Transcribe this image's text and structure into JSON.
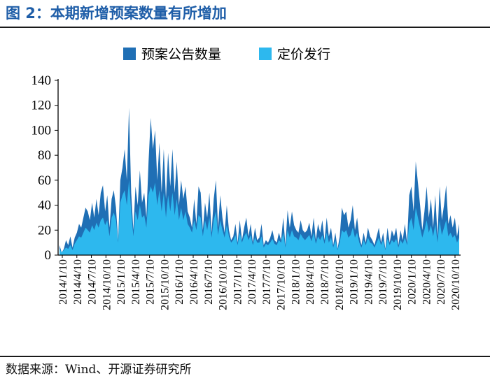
{
  "figure": {
    "title": "图 2：本期新增预案数量有所增加",
    "source": "数据来源：Wind、开源证券研究所"
  },
  "chart_data": {
    "type": "area",
    "legend_position": "top",
    "grid": false,
    "ylim": [
      0,
      140
    ],
    "yticks": [
      0,
      20,
      40,
      60,
      80,
      100,
      120,
      140
    ],
    "x_tick_labels": [
      "2014/1/10",
      "2014/4/10",
      "2014/7/10",
      "2014/10/10",
      "2015/1/10",
      "2015/4/10",
      "2015/7/10",
      "2015/10/10",
      "2016/1/10",
      "2016/4/10",
      "2016/7/10",
      "2016/10/10",
      "2017/1/10",
      "2017/4/10",
      "2017/7/10",
      "2017/10/10",
      "2018/1/10",
      "2018/4/10",
      "2018/7/10",
      "2018/10/10",
      "2019/1/10",
      "2019/4/10",
      "2019/7/10",
      "2019/10/10",
      "2020/1/10",
      "2020/4/10",
      "2020/7/10",
      "2020/10/10"
    ],
    "series": [
      {
        "name": "预案公告数量",
        "color": "#1f6fb5",
        "values": [
          8,
          2,
          5,
          12,
          8,
          15,
          6,
          14,
          18,
          25,
          22,
          30,
          38,
          35,
          28,
          42,
          30,
          45,
          32,
          50,
          56,
          35,
          48,
          22,
          45,
          52,
          38,
          12,
          60,
          70,
          85,
          60,
          118,
          50,
          20,
          55,
          40,
          68,
          42,
          50,
          30,
          75,
          110,
          85,
          100,
          60,
          90,
          50,
          85,
          45,
          82,
          55,
          85,
          50,
          75,
          40,
          60,
          45,
          55,
          35,
          30,
          22,
          45,
          25,
          55,
          50,
          20,
          42,
          30,
          50,
          18,
          45,
          60,
          22,
          48,
          30,
          18,
          40,
          20,
          12,
          15,
          25,
          10,
          28,
          12,
          22,
          30,
          15,
          25,
          10,
          22,
          12,
          14,
          25,
          8,
          12,
          10,
          14,
          20,
          12,
          10,
          18,
          12,
          30,
          8,
          36,
          22,
          35,
          24,
          20,
          18,
          28,
          20,
          18,
          20,
          26,
          15,
          30,
          12,
          25,
          18,
          28,
          12,
          30,
          15,
          22,
          8,
          18,
          5,
          15,
          38,
          32,
          35,
          22,
          28,
          40,
          20,
          30,
          15,
          8,
          18,
          10,
          22,
          15,
          12,
          8,
          15,
          22,
          10,
          18,
          5,
          22,
          10,
          20,
          15,
          22,
          8,
          20,
          12,
          25,
          10,
          48,
          55,
          35,
          75,
          58,
          40,
          20,
          35,
          55,
          30,
          45,
          22,
          48,
          15,
          55,
          28,
          40,
          56,
          25,
          32,
          22,
          30,
          15,
          25
        ]
      },
      {
        "name": "定价发行",
        "color": "#2db8ee",
        "values": [
          5,
          2,
          4,
          6,
          5,
          8,
          4,
          9,
          12,
          15,
          14,
          18,
          22,
          20,
          18,
          24,
          20,
          26,
          22,
          28,
          30,
          24,
          28,
          15,
          30,
          34,
          28,
          10,
          42,
          48,
          52,
          40,
          60,
          35,
          15,
          35,
          28,
          40,
          30,
          32,
          22,
          48,
          55,
          50,
          58,
          40,
          52,
          35,
          50,
          30,
          48,
          35,
          50,
          32,
          45,
          28,
          38,
          28,
          35,
          25,
          22,
          18,
          28,
          20,
          32,
          30,
          15,
          28,
          20,
          30,
          14,
          28,
          35,
          16,
          28,
          20,
          14,
          24,
          15,
          10,
          12,
          16,
          8,
          18,
          10,
          15,
          18,
          12,
          16,
          8,
          14,
          10,
          10,
          15,
          6,
          9,
          8,
          10,
          13,
          9,
          8,
          12,
          10,
          18,
          6,
          20,
          14,
          20,
          15,
          14,
          12,
          17,
          14,
          12,
          14,
          16,
          11,
          18,
          9,
          15,
          12,
          16,
          9,
          18,
          10,
          14,
          6,
          12,
          4,
          10,
          20,
          18,
          20,
          14,
          16,
          22,
          14,
          18,
          10,
          6,
          12,
          8,
          14,
          10,
          9,
          6,
          10,
          14,
          8,
          12,
          4,
          13,
          8,
          12,
          10,
          13,
          6,
          12,
          9,
          14,
          8,
          25,
          30,
          20,
          38,
          30,
          22,
          14,
          20,
          28,
          18,
          24,
          15,
          25,
          10,
          28,
          16,
          22,
          28,
          15,
          18,
          14,
          16,
          10,
          14
        ]
      }
    ]
  }
}
